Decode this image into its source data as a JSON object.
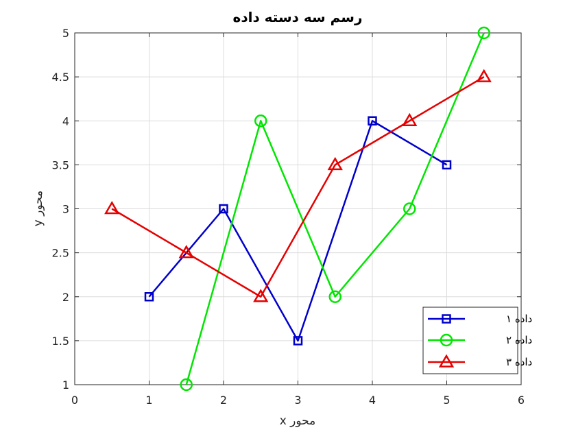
{
  "chart_data": {
    "type": "line",
    "title": "رسم سه دسته داده",
    "xlabel": "محور x",
    "ylabel": "محور y",
    "xlim": [
      0,
      6
    ],
    "ylim": [
      1,
      5
    ],
    "xticks": [
      0,
      1,
      2,
      3,
      4,
      5,
      6
    ],
    "yticks": [
      1,
      1.5,
      2,
      2.5,
      3,
      3.5,
      4,
      4.5,
      5
    ],
    "xtick_labels": [
      "0",
      "1",
      "2",
      "3",
      "4",
      "5",
      "6"
    ],
    "ytick_labels": [
      "1",
      "1.5",
      "2",
      "2.5",
      "3",
      "3.5",
      "4",
      "4.5",
      "5"
    ],
    "grid": true,
    "legend_position": "bottom-right",
    "series": [
      {
        "name": "داده ۱",
        "color": "#0000CC",
        "marker": "square",
        "x": [
          1,
          2,
          3,
          4,
          5
        ],
        "y": [
          2,
          3,
          1.5,
          4,
          3.5
        ]
      },
      {
        "name": "داده ۲",
        "color": "#00E600",
        "marker": "circle",
        "x": [
          1.5,
          2.5,
          3.5,
          4.5,
          5.5
        ],
        "y": [
          1,
          4,
          2,
          3,
          5
        ]
      },
      {
        "name": "داده ۳",
        "color": "#E60000",
        "marker": "triangle",
        "x": [
          0.5,
          1.5,
          2.5,
          3.5,
          4.5,
          5.5
        ],
        "y": [
          3,
          2.5,
          2,
          3.5,
          4,
          4.5
        ]
      }
    ]
  }
}
